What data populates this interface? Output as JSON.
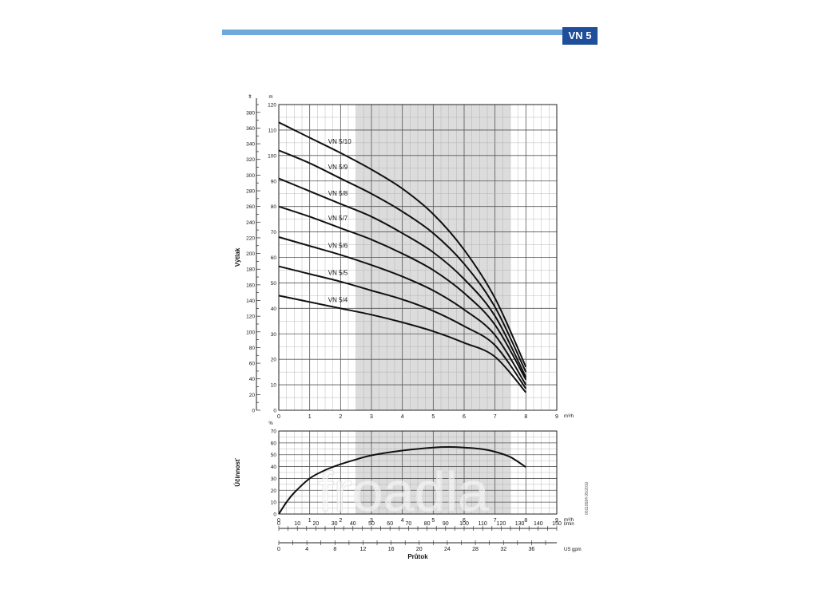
{
  "header": {
    "badge": "VN 5",
    "bar_color": "#6fa8dc",
    "badge_color": "#1f4e9a"
  },
  "watermark": "froadla",
  "side_note": "00110584 05/2010",
  "chart_data": [
    {
      "type": "line",
      "id": "head",
      "ylabel": "Výtlak",
      "ylabel_unit": "m",
      "ylabel_secondary_unit": "ft",
      "xlabel_unit": "m³/h",
      "xlim": [
        0,
        9
      ],
      "ylim": [
        0,
        120
      ],
      "ylim_ft": [
        0,
        390
      ],
      "x_ticks": [
        0,
        1,
        2,
        3,
        4,
        5,
        6,
        7,
        8,
        9
      ],
      "y_ticks": [
        0,
        10,
        20,
        30,
        40,
        50,
        60,
        70,
        80,
        90,
        100,
        110,
        120
      ],
      "y_ticks_ft": [
        0,
        20,
        40,
        60,
        80,
        100,
        120,
        140,
        160,
        180,
        200,
        220,
        240,
        260,
        280,
        300,
        320,
        340,
        360,
        380
      ],
      "shaded_range": [
        2.5,
        7.5
      ],
      "grid": true,
      "series": [
        {
          "name": "VN 5/10",
          "x": [
            0,
            1,
            2,
            3,
            4,
            5,
            6,
            7,
            8
          ],
          "values": [
            113,
            107,
            101,
            94.5,
            87,
            77,
            63,
            44,
            17
          ]
        },
        {
          "name": "VN 5/9",
          "x": [
            0,
            1,
            2,
            3,
            4,
            5,
            6,
            7,
            8
          ],
          "values": [
            102,
            97,
            91,
            85,
            78,
            69.5,
            57.5,
            40.5,
            15
          ]
        },
        {
          "name": "VN 5/8",
          "x": [
            0,
            1,
            2,
            3,
            4,
            5,
            6,
            7,
            8
          ],
          "values": [
            91,
            86,
            81,
            76,
            69.5,
            62,
            51.5,
            37,
            13
          ]
        },
        {
          "name": "VN 5/7",
          "x": [
            0,
            1,
            2,
            3,
            4,
            5,
            6,
            7,
            8
          ],
          "values": [
            80,
            76,
            71.5,
            67,
            61.5,
            55,
            46,
            33.5,
            12
          ]
        },
        {
          "name": "VN 5/6",
          "x": [
            0,
            1,
            2,
            3,
            4,
            5,
            6,
            7,
            8
          ],
          "values": [
            68,
            64.5,
            61,
            57,
            52.5,
            47,
            39.5,
            29.5,
            10
          ]
        },
        {
          "name": "VN 5/5",
          "x": [
            0,
            1,
            2,
            3,
            4,
            5,
            6,
            7,
            8
          ],
          "values": [
            56.5,
            53.5,
            50.5,
            47,
            43.5,
            39,
            33,
            25.5,
            8.5
          ]
        },
        {
          "name": "VN 5/4",
          "x": [
            0,
            1,
            2,
            3,
            4,
            5,
            6,
            7,
            8
          ],
          "values": [
            45,
            42.5,
            40,
            37.5,
            34.5,
            31,
            26.5,
            21,
            7
          ]
        }
      ]
    },
    {
      "type": "line",
      "id": "efficiency",
      "ylabel": "Účinnosť",
      "ylabel_unit": "%",
      "xlabel_unit": "m³/h",
      "xlabel": "Průtok",
      "xlim": [
        0,
        9
      ],
      "ylim": [
        0,
        70
      ],
      "x_ticks": [
        0,
        1,
        2,
        3,
        4,
        5,
        6,
        7,
        8,
        9
      ],
      "y_ticks": [
        0,
        10,
        20,
        30,
        40,
        50,
        60,
        70
      ],
      "shaded_range": [
        2.5,
        7.5
      ],
      "grid": true,
      "series": [
        {
          "x": [
            0,
            0.25,
            0.5,
            1,
            1.5,
            2,
            2.5,
            3,
            4,
            5,
            5.5,
            6,
            6.5,
            7,
            7.5,
            8
          ],
          "values": [
            0,
            10,
            18,
            30,
            37,
            42,
            46,
            49.5,
            53.5,
            56,
            56.5,
            56,
            55,
            52.5,
            48,
            39.5
          ]
        }
      ]
    }
  ],
  "flow_axes": [
    {
      "unit": "l/min",
      "min": 0,
      "max": 150,
      "ticks": [
        0,
        10,
        20,
        30,
        40,
        50,
        60,
        70,
        80,
        90,
        100,
        110,
        120,
        130,
        140,
        150
      ]
    },
    {
      "unit": "US gpm",
      "min": 0,
      "max": 39.6,
      "ticks": [
        0,
        4,
        8,
        12,
        16,
        20,
        24,
        28,
        32,
        36
      ]
    }
  ]
}
